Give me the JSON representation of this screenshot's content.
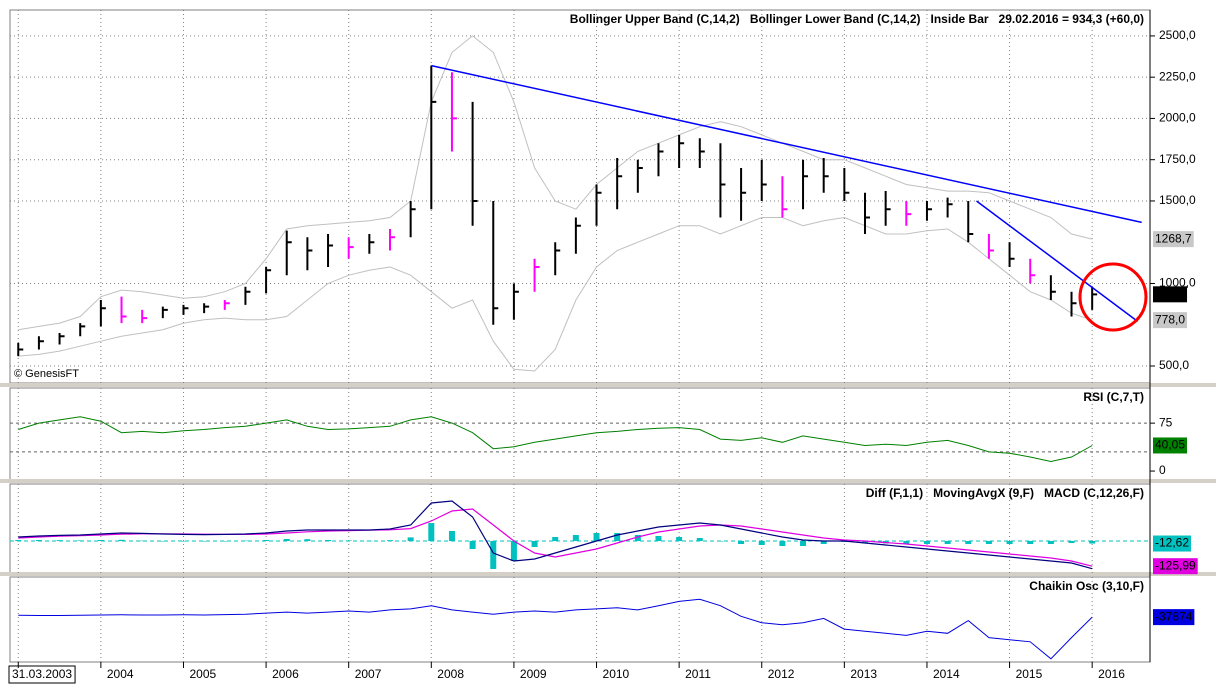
{
  "chart_data": {
    "type": "multi-panel",
    "xlim": [
      2002.9,
      2016.7
    ],
    "xticks": [
      {
        "value": 2003.0,
        "label": "31.03.2003"
      },
      2004,
      2005,
      2006,
      2007,
      2008,
      2009,
      2010,
      2011,
      2012,
      2013,
      2014,
      2015,
      2016
    ],
    "x": [
      2003.0,
      2003.25,
      2003.5,
      2003.75,
      2004.0,
      2004.25,
      2004.5,
      2004.75,
      2005.0,
      2005.25,
      2005.5,
      2005.75,
      2006.0,
      2006.25,
      2006.5,
      2006.75,
      2007.0,
      2007.25,
      2007.5,
      2007.75,
      2008.0,
      2008.25,
      2008.5,
      2008.75,
      2009.0,
      2009.25,
      2009.5,
      2009.75,
      2010.0,
      2010.25,
      2010.5,
      2010.75,
      2011.0,
      2011.25,
      2011.5,
      2011.75,
      2012.0,
      2012.25,
      2012.5,
      2012.75,
      2013.0,
      2013.25,
      2013.5,
      2013.75,
      2014.0,
      2014.25,
      2014.5,
      2014.75,
      2015.0,
      2015.25,
      2015.5,
      2015.75,
      2016.0
    ],
    "panels": [
      {
        "type": "ohlc",
        "title": "29.02.2016 = 934,3 (+60,0)",
        "source": "© GenesisFT",
        "inside_bar_label": "Inside Bar",
        "inside_bar_color": "#ff00ff",
        "bar_color": "#000000",
        "inside_bars": [
          5,
          6,
          10,
          16,
          18,
          21,
          25,
          37,
          43,
          47,
          49
        ],
        "ylim": [
          397,
          2657
        ],
        "grid": true,
        "yticks": [
          {
            "value": 500,
            "label": "500,0"
          },
          {
            "value": 1000,
            "label": "1000,0"
          },
          {
            "value": 1500,
            "label": "1500,0"
          },
          {
            "value": 1750,
            "label": "1750,0"
          },
          {
            "value": 2000,
            "label": "2000,0"
          },
          {
            "value": 2250,
            "label": "2250,0"
          },
          {
            "value": 2500,
            "label": "2500,0"
          }
        ],
        "high": [
          640,
          680,
          700,
          760,
          900,
          920,
          840,
          860,
          870,
          880,
          900,
          980,
          1100,
          1320,
          1280,
          1300,
          1280,
          1300,
          1330,
          1500,
          2320,
          2280,
          2100,
          1500,
          1000,
          1150,
          1250,
          1400,
          1600,
          1760,
          1750,
          1850,
          1900,
          1880,
          1850,
          1700,
          1750,
          1650,
          1750,
          1760,
          1700,
          1550,
          1560,
          1500,
          1500,
          1520,
          1500,
          1300,
          1250,
          1150,
          1050,
          950,
          980
        ],
        "low": [
          560,
          600,
          630,
          680,
          740,
          760,
          760,
          790,
          810,
          820,
          840,
          870,
          940,
          1050,
          1080,
          1100,
          1150,
          1180,
          1200,
          1280,
          1450,
          1800,
          1350,
          750,
          780,
          950,
          1050,
          1180,
          1350,
          1450,
          1550,
          1650,
          1700,
          1700,
          1400,
          1380,
          1500,
          1400,
          1450,
          1550,
          1500,
          1300,
          1350,
          1350,
          1380,
          1400,
          1250,
          1150,
          1100,
          1000,
          900,
          800,
          840
        ],
        "close": [
          600,
          650,
          680,
          740,
          850,
          800,
          790,
          840,
          850,
          860,
          880,
          950,
          1080,
          1250,
          1200,
          1230,
          1220,
          1250,
          1280,
          1450,
          2100,
          2000,
          1500,
          850,
          950,
          1100,
          1200,
          1350,
          1550,
          1650,
          1700,
          1800,
          1850,
          1800,
          1600,
          1550,
          1600,
          1450,
          1650,
          1650,
          1550,
          1400,
          1450,
          1420,
          1450,
          1480,
          1300,
          1200,
          1150,
          1050,
          950,
          880,
          934.3
        ],
        "close_last_label": "934,3",
        "series": [
          {
            "name": "Bollinger Upper Band (C,14,2)",
            "color": "#c0c0c0",
            "last_value_label": "1268,7",
            "values": [
              720,
              740,
              760,
              800,
              920,
              960,
              950,
              930,
              910,
              920,
              950,
              1000,
              1150,
              1330,
              1350,
              1360,
              1370,
              1380,
              1400,
              1500,
              2100,
              2400,
              2500,
              2400,
              2100,
              1700,
              1500,
              1450,
              1600,
              1700,
              1800,
              1850,
              1900,
              1950,
              1980,
              1950,
              1900,
              1850,
              1800,
              1750,
              1750,
              1700,
              1650,
              1600,
              1580,
              1560,
              1560,
              1550,
              1500,
              1450,
              1400,
              1300,
              1268.7
            ]
          },
          {
            "name": "Bollinger Lower Band (C,14,2)",
            "color": "#c0c0c0",
            "last_value_label": "778,0",
            "values": [
              560,
              570,
              590,
              620,
              650,
              680,
              700,
              720,
              760,
              780,
              790,
              780,
              780,
              800,
              900,
              1000,
              1050,
              1080,
              1100,
              1050,
              950,
              850,
              900,
              650,
              480,
              470,
              600,
              900,
              1100,
              1200,
              1250,
              1300,
              1350,
              1350,
              1300,
              1350,
              1400,
              1400,
              1350,
              1380,
              1400,
              1350,
              1300,
              1300,
              1320,
              1330,
              1250,
              1150,
              1050,
              950,
              900,
              820,
              778
            ]
          }
        ],
        "trendline_color": "#0000ff",
        "trendlines": [
          {
            "x": [
              2008.0,
              2016.6
            ],
            "y": [
              2320,
              1370
            ]
          },
          {
            "x": [
              2014.6,
              2016.55
            ],
            "y": [
              1500,
              770
            ]
          }
        ]
      },
      {
        "type": "line",
        "ylim": [
          -14,
          130
        ],
        "yticks": [
          0,
          75
        ],
        "levels": [
          75,
          30
        ],
        "series": [
          {
            "name": "RSI (C,7,T)",
            "color": "#008000",
            "last_value_label": "40,05",
            "values": [
              65,
              75,
              80,
              85,
              78,
              60,
              62,
              60,
              63,
              65,
              68,
              70,
              75,
              80,
              70,
              65,
              66,
              68,
              70,
              80,
              85,
              75,
              60,
              35,
              38,
              45,
              50,
              55,
              60,
              62,
              65,
              67,
              68,
              65,
              50,
              48,
              52,
              45,
              55,
              50,
              45,
              40,
              42,
              40,
              45,
              48,
              40,
              30,
              28,
              22,
              15,
              22,
              40.05
            ]
          }
        ]
      },
      {
        "type": "macd",
        "ylim": [
          -160,
          285
        ],
        "zero_line": true,
        "series": [
          {
            "name": "Diff (F,1,1)",
            "color": "#00c0c0",
            "style": "histogram",
            "last_value_label": "-12,62",
            "values": [
              5,
              5,
              4,
              3,
              5,
              6,
              2,
              -1,
              -2,
              -2,
              0,
              2,
              5,
              10,
              9,
              5,
              3,
              1,
              4,
              18,
              90,
              50,
              -40,
              -140,
              -100,
              -30,
              20,
              30,
              40,
              40,
              30,
              25,
              20,
              15,
              0,
              -15,
              -20,
              -25,
              -25,
              -15,
              -5,
              -10,
              -12,
              -15,
              -15,
              -15,
              -15,
              -15,
              -15,
              -15,
              -15,
              -10,
              -12.62
            ]
          },
          {
            "name": "MovingAvgX (9,F)",
            "color": "#e000e0",
            "style": "line",
            "last_value_label": "-125,99",
            "values": [
              15,
              20,
              24,
              27,
              30,
              34,
              36,
              36,
              35,
              34,
              33,
              33,
              35,
              40,
              46,
              50,
              52,
              54,
              56,
              62,
              100,
              150,
              160,
              80,
              0,
              -60,
              -80,
              -60,
              -40,
              -10,
              20,
              45,
              60,
              75,
              80,
              75,
              60,
              45,
              30,
              15,
              5,
              0,
              -8,
              -15,
              -25,
              -35,
              -45,
              -55,
              -65,
              -75,
              -85,
              -100,
              -125.99
            ]
          },
          {
            "name": "MACD (C,12,26,F)",
            "color": "#000080",
            "style": "line",
            "values": [
              20,
              25,
              28,
              30,
              35,
              40,
              38,
              35,
              33,
              32,
              33,
              35,
              40,
              50,
              55,
              55,
              55,
              55,
              60,
              80,
              190,
              200,
              120,
              -60,
              -100,
              -90,
              -60,
              -30,
              0,
              30,
              50,
              70,
              80,
              90,
              80,
              60,
              40,
              20,
              5,
              0,
              0,
              -10,
              -20,
              -30,
              -40,
              -50,
              -60,
              -70,
              -80,
              -90,
              -100,
              -110,
              -138.61
            ]
          }
        ]
      },
      {
        "type": "line",
        "ylim": [
          -2150000,
          1850000
        ],
        "series": [
          {
            "name": "Chaikin Osc (3,10,F)",
            "color": "#0000e0",
            "last_value_label": "-37874",
            "values": [
              50000,
              40000,
              40000,
              50000,
              60000,
              70000,
              60000,
              60000,
              70000,
              60000,
              80000,
              100000,
              150000,
              200000,
              150000,
              200000,
              250000,
              200000,
              300000,
              350000,
              500000,
              300000,
              200000,
              100000,
              200000,
              250000,
              200000,
              300000,
              350000,
              400000,
              300000,
              500000,
              700000,
              800000,
              500000,
              0,
              -300000,
              -400000,
              -300000,
              -100000,
              -600000,
              -700000,
              -800000,
              -900000,
              -700000,
              -800000,
              -200000,
              -1000000,
              -1100000,
              -1200000,
              -2000000,
              -1000000,
              -37874
            ]
          }
        ]
      }
    ]
  }
}
